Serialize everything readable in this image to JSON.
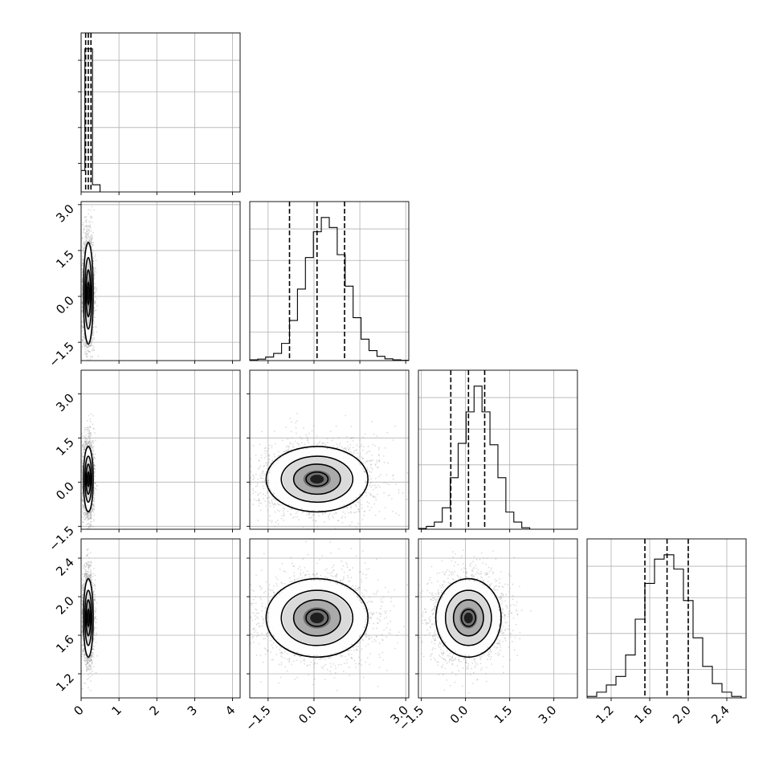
{
  "chart_data": {
    "type": "corner",
    "grid": true,
    "dimensions": 4,
    "axes": [
      {
        "index": 0,
        "range": [
          0,
          4.2
        ],
        "ticks": [
          0,
          1,
          2,
          3,
          4
        ],
        "tick_labels": [
          "0",
          "1",
          "2",
          "3",
          "4"
        ]
      },
      {
        "index": 1,
        "range": [
          -2.1,
          3.1
        ],
        "ticks": [
          -1.5,
          0.0,
          1.5,
          3.0
        ],
        "tick_labels": [
          "−1.5",
          "0.0",
          "1.5",
          "3.0"
        ]
      },
      {
        "index": 2,
        "range": [
          -1.6,
          3.8
        ],
        "ticks": [
          -1.5,
          0.0,
          1.5,
          3.0
        ],
        "tick_labels": [
          "−1.5",
          "0.0",
          "1.5",
          "3.0"
        ]
      },
      {
        "index": 3,
        "range": [
          0.95,
          2.6
        ],
        "ticks": [
          1.2,
          1.6,
          2.0,
          2.4
        ],
        "tick_labels": [
          "1.2",
          "1.6",
          "2.0",
          "2.4"
        ]
      }
    ],
    "marginals": [
      {
        "dim": 0,
        "bin_edges": [
          0,
          0.1,
          0.2,
          0.3,
          0.5
        ],
        "counts": [
          0.15,
          1.0,
          1.0,
          0.05
        ],
        "quantiles": [
          0.12,
          0.19,
          0.26
        ]
      },
      {
        "dim": 1,
        "bin_edges": [
          -2.1,
          -1.84,
          -1.58,
          -1.32,
          -1.06,
          -0.8,
          -0.54,
          -0.28,
          -0.02,
          0.24,
          0.5,
          0.76,
          1.02,
          1.28,
          1.54,
          1.8,
          2.06,
          2.32,
          2.58,
          2.84,
          3.1
        ],
        "counts": [
          0.005,
          0.01,
          0.025,
          0.05,
          0.12,
          0.28,
          0.5,
          0.72,
          0.9,
          1.0,
          0.93,
          0.74,
          0.52,
          0.3,
          0.15,
          0.07,
          0.03,
          0.012,
          0.005,
          0.002
        ],
        "quantiles": [
          -0.8,
          0.1,
          1.0
        ]
      },
      {
        "dim": 2,
        "bin_edges": [
          -1.6,
          -1.33,
          -1.06,
          -0.79,
          -0.52,
          -0.25,
          0.02,
          0.29,
          0.56,
          0.83,
          1.1,
          1.37,
          1.64,
          1.91,
          2.18
        ],
        "counts": [
          0.005,
          0.02,
          0.05,
          0.15,
          0.36,
          0.6,
          0.82,
          1.0,
          0.82,
          0.59,
          0.36,
          0.12,
          0.05,
          0.01
        ],
        "quantiles": [
          -0.5,
          0.1,
          0.65
        ]
      },
      {
        "dim": 3,
        "bin_edges": [
          0.95,
          1.05,
          1.15,
          1.25,
          1.35,
          1.45,
          1.55,
          1.65,
          1.75,
          1.85,
          1.95,
          2.05,
          2.15,
          2.25,
          2.35,
          2.45,
          2.55
        ],
        "counts": [
          0.01,
          0.04,
          0.09,
          0.15,
          0.3,
          0.55,
          0.8,
          0.97,
          1.0,
          0.9,
          0.68,
          0.42,
          0.22,
          0.1,
          0.04,
          0.01
        ],
        "quantiles": [
          1.55,
          1.78,
          2.0
        ]
      }
    ],
    "joint": [
      {
        "x_dim": 0,
        "y_dim": 1,
        "mean": [
          0.19,
          0.1
        ],
        "sigma": [
          0.07,
          0.9
        ],
        "n_points": 2500
      },
      {
        "x_dim": 0,
        "y_dim": 2,
        "mean": [
          0.19,
          0.1
        ],
        "sigma": [
          0.07,
          0.6
        ],
        "n_points": 2500
      },
      {
        "x_dim": 1,
        "y_dim": 2,
        "mean": [
          0.1,
          0.1
        ],
        "sigma": [
          0.9,
          0.6
        ],
        "n_points": 2500
      },
      {
        "x_dim": 0,
        "y_dim": 3,
        "mean": [
          0.19,
          1.78
        ],
        "sigma": [
          0.07,
          0.22
        ],
        "n_points": 2500
      },
      {
        "x_dim": 1,
        "y_dim": 3,
        "mean": [
          0.1,
          1.78
        ],
        "sigma": [
          0.9,
          0.22
        ],
        "n_points": 2500
      },
      {
        "x_dim": 2,
        "y_dim": 3,
        "mean": [
          0.1,
          1.78
        ],
        "sigma": [
          0.6,
          0.22
        ],
        "n_points": 2500
      }
    ]
  }
}
